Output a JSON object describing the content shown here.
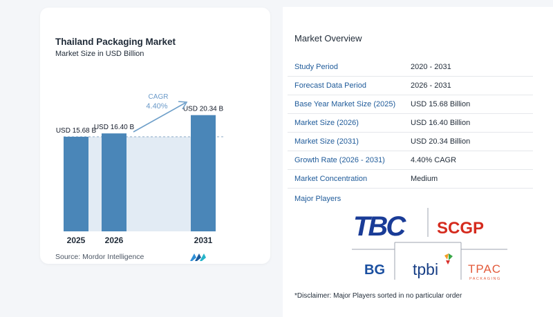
{
  "chart": {
    "title": "Thailand Packaging Market",
    "subtitle": "Market Size in USD Billion",
    "cagr_label": "CAGR",
    "cagr_value": "4.40%",
    "source": "Source:  Mordor Intelligence"
  },
  "chart_data": {
    "type": "bar",
    "categories": [
      "2025",
      "2026",
      "2031"
    ],
    "values": [
      15.68,
      16.4,
      20.34
    ],
    "value_labels": [
      "USD 15.68 B",
      "USD 16.40 B",
      "USD 20.34 B"
    ],
    "title": "Thailand Packaging Market",
    "subtitle": "Market Size in USD Billion",
    "annotation": "CAGR 4.40%",
    "colors": {
      "bar": "#4a86b8",
      "band": "#e2ebf4",
      "label": "#6b9ac9"
    }
  },
  "overview": {
    "title": "Market Overview",
    "rows": [
      {
        "label": "Study Period",
        "value": "2020 - 2031"
      },
      {
        "label": "Forecast Data Period",
        "value": "2026 - 2031"
      },
      {
        "label": "Base Year Market Size (2025)",
        "value": "USD 15.68 Billion"
      },
      {
        "label": "Market Size (2026)",
        "value": "USD 16.40 Billion"
      },
      {
        "label": "Market Size (2031)",
        "value": "USD 20.34 Billion"
      },
      {
        "label": "Growth Rate (2026 - 2031)",
        "value": "4.40% CAGR"
      },
      {
        "label": "Market Concentration",
        "value": "Medium"
      }
    ],
    "players_label": "Major Players",
    "players": [
      "TBC",
      "SCGP",
      "BG",
      "tpbi",
      "TPAC",
      "PACKAGING"
    ],
    "disclaimer": "*Disclaimer: Major Players sorted in no particular order"
  }
}
